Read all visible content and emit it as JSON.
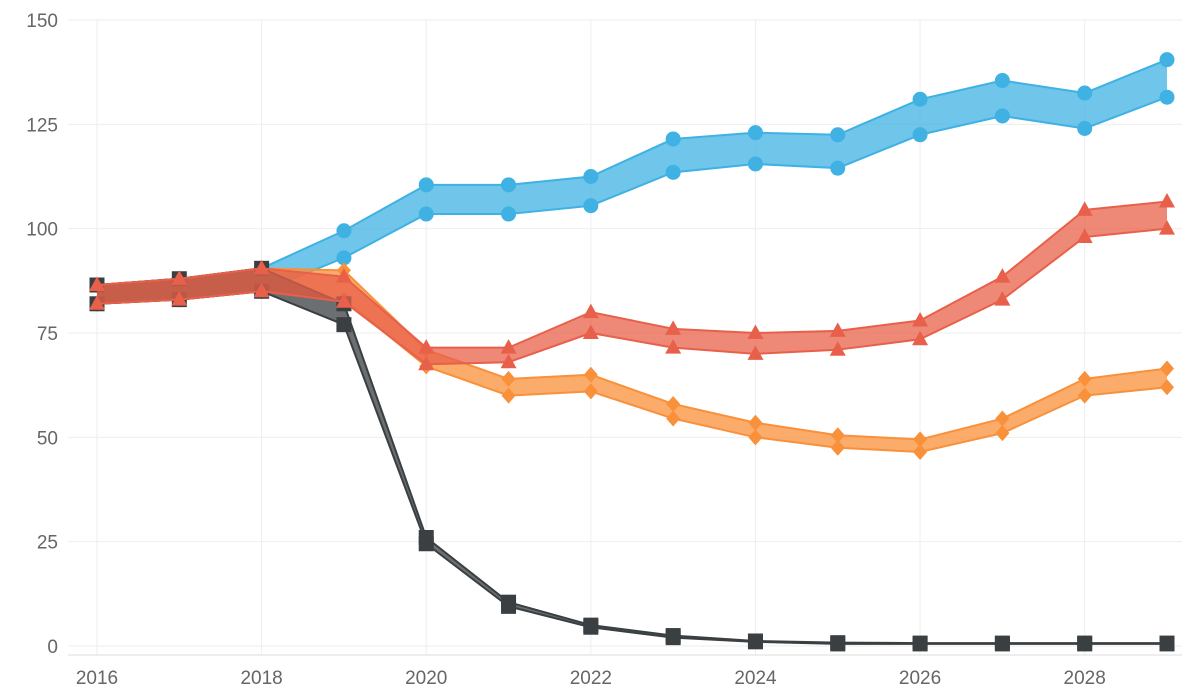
{
  "chart_data": {
    "type": "area",
    "x_ticks": [
      2016,
      2018,
      2020,
      2022,
      2024,
      2026,
      2028
    ],
    "y_ticks": [
      0,
      25,
      50,
      75,
      100,
      125,
      150
    ],
    "xlim": [
      2016,
      2029
    ],
    "ylim": [
      0,
      150
    ],
    "grid": true,
    "series": [
      {
        "color": "#3fb1e3",
        "marker": "circle",
        "x": [
          2016,
          2017,
          2018,
          2019,
          2020,
          2021,
          2022,
          2023,
          2024,
          2025,
          2026,
          2027,
          2028,
          2029
        ],
        "lower": [
          82,
          83,
          85,
          93,
          103.5,
          103.5,
          105.5,
          113.5,
          115.5,
          114.5,
          122.5,
          127,
          124,
          131.5
        ],
        "upper": [
          86.5,
          88,
          90.5,
          99.5,
          110.5,
          110.5,
          112.5,
          121.5,
          123,
          122.5,
          131,
          135.5,
          132.5,
          140.5
        ]
      },
      {
        "color": "#f9903a",
        "marker": "diamond",
        "x": [
          2016,
          2017,
          2018,
          2019,
          2020,
          2021,
          2022,
          2023,
          2024,
          2025,
          2026,
          2027,
          2028,
          2029
        ],
        "lower": [
          82,
          83,
          85,
          83,
          67,
          60,
          61,
          54.5,
          50,
          47.5,
          46.5,
          51,
          60,
          62
        ],
        "upper": [
          86.5,
          88,
          90.5,
          90,
          71,
          64,
          65,
          58,
          53.5,
          50.5,
          49.5,
          54.5,
          64,
          66.5
        ]
      },
      {
        "color": "#3a3f42",
        "marker": "square",
        "x": [
          2016,
          2017,
          2018,
          2019,
          2020,
          2021,
          2022,
          2023,
          2024,
          2025,
          2026,
          2027,
          2028,
          2029
        ],
        "lower": [
          82,
          83,
          85,
          77,
          24.5,
          9.5,
          4.5,
          2,
          1,
          0.5,
          0.5,
          0.5,
          0.5,
          0.5
        ],
        "upper": [
          86.5,
          88,
          90.5,
          82,
          26,
          10.5,
          5,
          2.5,
          1.2,
          0.8,
          0.7,
          0.7,
          0.7,
          0.7
        ]
      },
      {
        "color": "#e8604a",
        "marker": "triangle",
        "x": [
          2016,
          2017,
          2018,
          2019,
          2020,
          2021,
          2022,
          2023,
          2024,
          2025,
          2026,
          2027,
          2028,
          2029
        ],
        "lower": [
          82,
          83,
          85,
          82.5,
          67.5,
          68,
          75,
          71.5,
          70,
          71,
          73.5,
          83,
          98,
          100
        ],
        "upper": [
          86.5,
          88,
          90.5,
          88.5,
          71.5,
          71.5,
          80,
          76,
          75,
          75.5,
          78,
          88.5,
          104.5,
          106.5
        ]
      }
    ]
  }
}
